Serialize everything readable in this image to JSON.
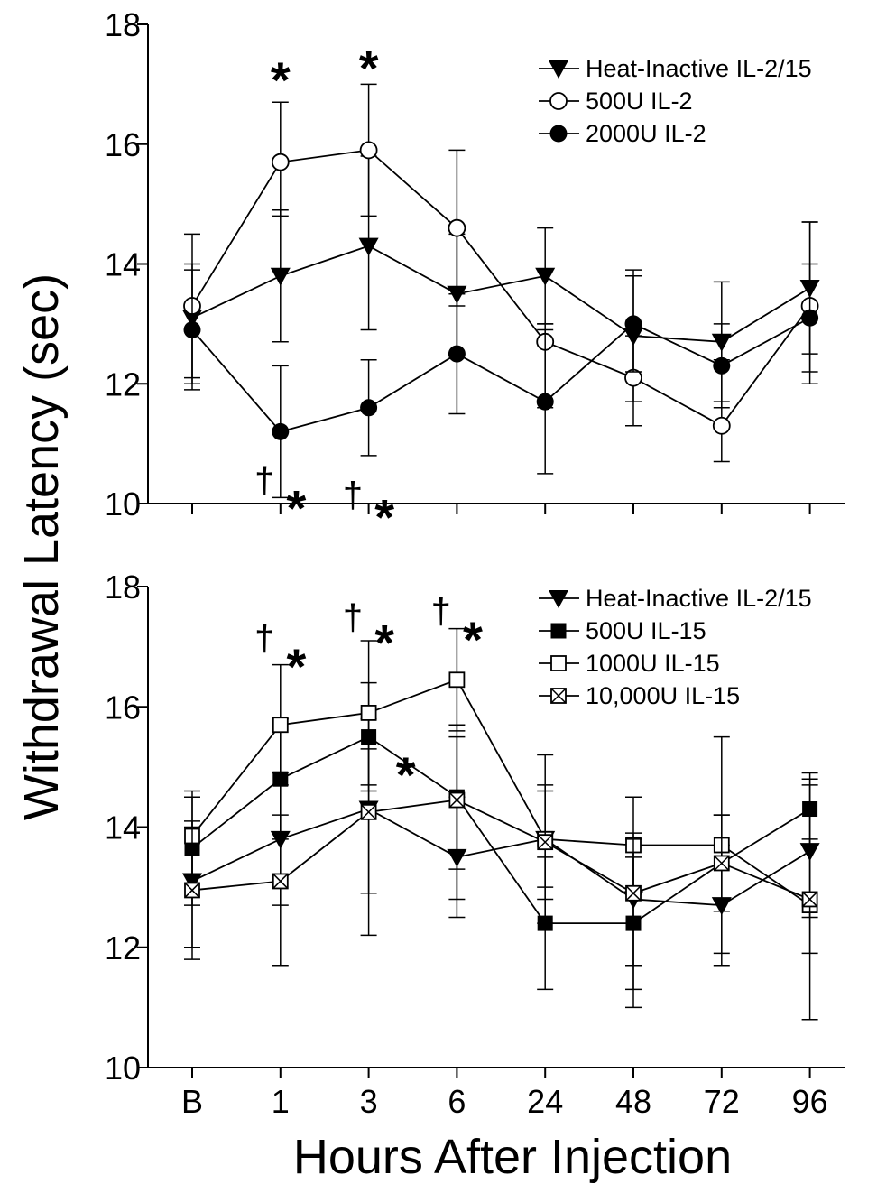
{
  "figure": {
    "ylabel": "Withdrawal Latency (sec)",
    "xlabel": "Hours After Injection"
  },
  "chart_data": [
    {
      "type": "line",
      "panel": "top",
      "categories": [
        "B",
        "1",
        "3",
        "6",
        "24",
        "48",
        "72",
        "96"
      ],
      "ylim": [
        10,
        18
      ],
      "yticks": [
        10,
        12,
        14,
        16,
        18
      ],
      "legend_position": "top-right",
      "series": [
        {
          "name": "Heat-Inactive IL-2/15",
          "marker": "triangle-down-filled",
          "values": [
            13.1,
            13.8,
            14.3,
            13.5,
            13.8,
            12.8,
            12.7,
            13.6
          ],
          "upper": [
            14.0,
            14.9,
            15.8,
            14.5,
            14.6,
            13.9,
            13.7,
            14.7
          ],
          "lower": [
            12.0,
            12.7,
            12.9,
            12.5,
            13.0,
            11.7,
            11.7,
            12.5
          ]
        },
        {
          "name": "500U IL-2",
          "marker": "circle-open",
          "values": [
            13.3,
            15.7,
            15.9,
            14.6,
            12.7,
            12.1,
            11.3,
            13.3
          ],
          "upper": [
            14.5,
            16.7,
            17.0,
            15.9,
            13.0,
            12.8,
            12.4,
            14.7
          ],
          "lower": [
            12.1,
            14.8,
            14.8,
            13.3,
            11.6,
            11.3,
            10.7,
            12.0
          ]
        },
        {
          "name": "2000U IL-2",
          "marker": "circle-filled",
          "values": [
            12.9,
            11.2,
            11.6,
            12.5,
            11.7,
            13.0,
            12.3,
            13.1
          ],
          "upper": [
            13.9,
            12.3,
            12.4,
            13.5,
            12.9,
            13.8,
            13.0,
            14.0
          ],
          "lower": [
            11.9,
            10.1,
            10.8,
            11.5,
            10.5,
            12.2,
            11.6,
            12.2
          ]
        }
      ],
      "annotations": [
        {
          "text": "*",
          "category": "1",
          "kind": "star",
          "y": 17.2
        },
        {
          "text": "*",
          "category": "3",
          "kind": "star",
          "y": 17.4
        },
        {
          "text": "†",
          "category": "1",
          "kind": "dagger",
          "y": 10.4,
          "offset": -0.18
        },
        {
          "text": "*",
          "category": "1",
          "kind": "star",
          "y": 10.05,
          "offset": 0.18
        },
        {
          "text": "†",
          "category": "3",
          "kind": "dagger",
          "y": 10.15,
          "offset": -0.18
        },
        {
          "text": "*",
          "category": "3",
          "kind": "star",
          "y": 9.9,
          "offset": 0.18
        }
      ]
    },
    {
      "type": "line",
      "panel": "bottom",
      "categories": [
        "B",
        "1",
        "3",
        "6",
        "24",
        "48",
        "72",
        "96"
      ],
      "ylim": [
        10,
        18
      ],
      "yticks": [
        10,
        12,
        14,
        16,
        18
      ],
      "legend_position": "top-right",
      "series": [
        {
          "name": "Heat-Inactive IL-2/15",
          "marker": "triangle-down-filled",
          "values": [
            13.1,
            13.8,
            14.3,
            13.5,
            13.8,
            12.8,
            12.7,
            13.6
          ],
          "upper": [
            14.0,
            14.9,
            15.8,
            14.5,
            14.6,
            13.9,
            13.7,
            14.7
          ],
          "lower": [
            12.0,
            12.7,
            12.9,
            12.5,
            13.0,
            11.7,
            11.7,
            12.5
          ]
        },
        {
          "name": "500U IL-15",
          "marker": "square-filled",
          "values": [
            13.65,
            14.8,
            15.5,
            14.5,
            12.4,
            12.4,
            13.4,
            14.3
          ],
          "upper": [
            14.6,
            15.8,
            16.4,
            15.7,
            13.5,
            13.5,
            14.2,
            14.9
          ],
          "lower": [
            12.7,
            13.8,
            14.6,
            13.3,
            11.3,
            11.3,
            12.6,
            13.7
          ]
        },
        {
          "name": "1000U IL-15",
          "marker": "square-open",
          "values": [
            13.85,
            15.7,
            15.9,
            16.45,
            13.8,
            13.7,
            13.7,
            12.7
          ],
          "upper": [
            14.5,
            16.7,
            17.1,
            17.3,
            15.2,
            14.5,
            15.5,
            14.8
          ],
          "lower": [
            13.2,
            14.7,
            14.7,
            15.6,
            12.4,
            12.9,
            11.9,
            10.8
          ]
        },
        {
          "name": "10,000U IL-15",
          "marker": "square-x",
          "values": [
            12.95,
            13.1,
            14.25,
            14.45,
            13.75,
            12.9,
            13.4,
            12.8
          ],
          "upper": [
            14.1,
            14.2,
            15.3,
            15.5,
            14.7,
            13.8,
            14.2,
            13.8
          ],
          "lower": [
            11.8,
            11.7,
            12.2,
            12.8,
            12.8,
            11.0,
            12.6,
            11.9
          ]
        }
      ],
      "annotations": [
        {
          "text": "†",
          "category": "1",
          "kind": "dagger",
          "y": 17.15,
          "offset": -0.18
        },
        {
          "text": "*",
          "category": "1",
          "kind": "star",
          "y": 16.8,
          "offset": 0.18
        },
        {
          "text": "†",
          "category": "3",
          "kind": "dagger",
          "y": 17.5,
          "offset": -0.18
        },
        {
          "text": "*",
          "category": "3",
          "kind": "star",
          "y": 17.2,
          "offset": 0.18
        },
        {
          "text": "†",
          "category": "6",
          "kind": "dagger",
          "y": 17.6,
          "offset": -0.18
        },
        {
          "text": "*",
          "category": "6",
          "kind": "star",
          "y": 17.25,
          "offset": 0.18
        },
        {
          "text": "*",
          "category": "3",
          "kind": "star",
          "y": 15.0,
          "offset": 0.42
        }
      ]
    }
  ]
}
